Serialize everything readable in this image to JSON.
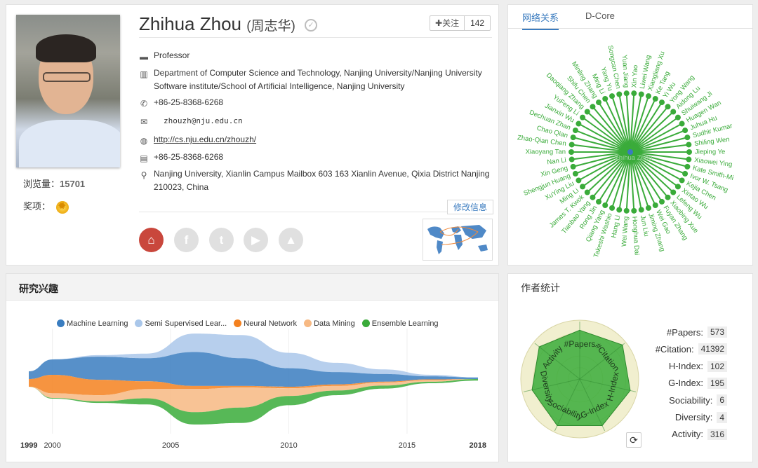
{
  "profile": {
    "name": "Zhihua Zhou",
    "name_cn": "(周志华)",
    "follow_label": "关注",
    "follow_count": "142",
    "visits_label": "浏览量：",
    "visits_value": "15701",
    "awards_label": "奖项：",
    "position": "Professor",
    "affiliation_line1": "Department of Computer Science and Technology, Nanjing University/Nanjing University",
    "affiliation_line2": "Software institute/School of Artificial Intelligence, Nanjing University",
    "phone": "+86-25-8368-6268",
    "email": "zhouzh@nju.edu.cn",
    "homepage": "http://cs.nju.edu.cn/zhouzh/",
    "fax": "+86-25-8368-6268",
    "address_line1": "Nanjing University, Xianlin Campus Mailbox 603 163 Xianlin Avenue, Qixia District Nanjing",
    "address_line2": "210023, China",
    "edit_label": "修改信息"
  },
  "network": {
    "tabs": [
      "网络关系",
      "D-Core"
    ],
    "center": "Zhihua Zhou",
    "nodes": [
      "Xin Yao",
      "Liwei Wang",
      "Xiangliang Xu",
      "Ke Tang",
      "Yi Wu",
      "Yong Wang",
      "Aidong Lu",
      "Shuiwang Ji",
      "Huagen Wan",
      "Juhua Hu",
      "Sudhir Kumar",
      "Shiling Wen",
      "Jieping Ye",
      "Xiaowei Ying",
      "Kate Smith-Mi",
      "Ivor W. Tsang",
      "Kejia Chen",
      "Xintao Wu",
      "Lefeng Wu",
      "Xiaobing Xue",
      "Fuyan Zhang",
      "Wei Gao",
      "Jiming Zhang",
      "Jun Liu",
      "Honghua Dai",
      "Wei Wang",
      "Hang Li",
      "Takeshi Washio",
      "Qiang Yang",
      "Rong Jin",
      "Tianbao Yang",
      "James T. Kwok",
      "Ming Li",
      "XuYing Liu",
      "Shengjun Huang",
      "Xin Geng",
      "Nan Li",
      "Xiaoyang Tan",
      "Zhao-Qian Chen",
      "Chao Qian",
      "Dechuan Zhan",
      "Jianxin Wu",
      "YuFeng Li",
      "Daoqiang Zhang",
      "Shifu Chen",
      "Minling Zhang",
      "Ming Li",
      "Yang Yu",
      "Songcan Chen",
      "Yuan Jiang"
    ]
  },
  "interests": {
    "title": "研究兴趣",
    "legend": [
      {
        "label": "Machine Learning",
        "color": "#3a7dc0"
      },
      {
        "label": "Semi Supervised Lear...",
        "color": "#aac7ea"
      },
      {
        "label": "Neural Network",
        "color": "#f4811f"
      },
      {
        "label": "Data Mining",
        "color": "#f7b983"
      },
      {
        "label": "Ensemble Learning",
        "color": "#3aab3a"
      }
    ],
    "axis_labels": [
      "1999",
      "2000",
      "2005",
      "2010",
      "2015",
      "2018"
    ]
  },
  "chart_data": {
    "type": "area",
    "x": [
      1999,
      2000,
      2002,
      2004,
      2006,
      2008,
      2010,
      2012,
      2014,
      2016,
      2018
    ],
    "series": [
      {
        "name": "Machine Learning",
        "values": [
          0.5,
          1.0,
          1.5,
          1.5,
          2.2,
          1.8,
          1.2,
          0.8,
          0.5,
          0.2,
          0.1
        ]
      },
      {
        "name": "Semi Supervised Lear...",
        "values": [
          0,
          0,
          0.1,
          0.3,
          1.2,
          1.5,
          1.0,
          0.6,
          0.3,
          0.1,
          0
        ]
      },
      {
        "name": "Neural Network",
        "values": [
          0.5,
          1.2,
          1.0,
          0.5,
          0.2,
          0.1,
          0.1,
          0.1,
          0.05,
          0.05,
          0
        ]
      },
      {
        "name": "Data Mining",
        "values": [
          0,
          0.3,
          0.4,
          0.6,
          1.5,
          1.3,
          0.5,
          0.3,
          0.2,
          0.1,
          0
        ]
      },
      {
        "name": "Ensemble Learning",
        "values": [
          0,
          0.05,
          0.1,
          0.4,
          0.8,
          1.0,
          0.6,
          0.3,
          0.2,
          0.1,
          0.1
        ]
      }
    ],
    "xlim": [
      1999,
      2018
    ]
  },
  "stats": {
    "title": "作者统计",
    "items": [
      {
        "label": "#Papers:",
        "value": "573"
      },
      {
        "label": "#Citation:",
        "value": "41392"
      },
      {
        "label": "H-Index:",
        "value": "102"
      },
      {
        "label": "G-Index:",
        "value": "195"
      },
      {
        "label": "Sociability:",
        "value": "6"
      },
      {
        "label": "Diversity:",
        "value": "4"
      },
      {
        "label": "Activity:",
        "value": "316"
      }
    ],
    "radar_axes": [
      "#Papers",
      "#Citation",
      "H-Index",
      "G-Index",
      "Sociability",
      "Diversity",
      "Activity"
    ],
    "radar_values": [
      0.85,
      0.95,
      0.9,
      0.9,
      0.9,
      0.85,
      0.9
    ]
  },
  "colors": {
    "accent": "#3a7bbf",
    "network_green": "#3aab3a",
    "home_red": "#c9473c"
  }
}
